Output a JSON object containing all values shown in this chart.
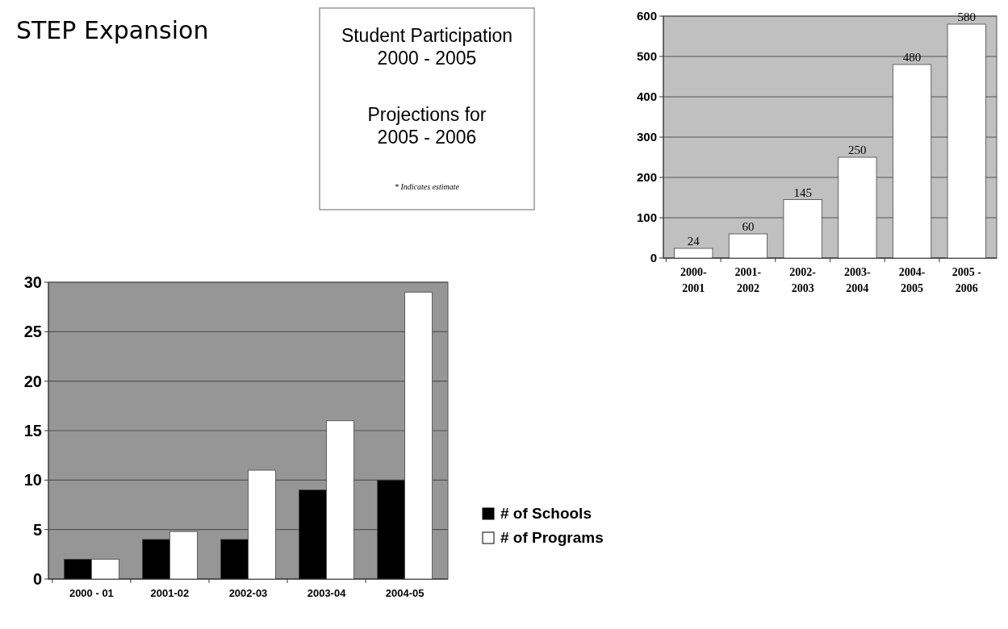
{
  "chart_data": [
    {
      "type": "other",
      "title": "STEP Expansion"
    },
    {
      "type": "other",
      "title": "Student Participation 2000 - 2005",
      "subtitle": "Projections for 2005 - 2006",
      "annotations": [
        "* Indicates estimate"
      ]
    },
    {
      "type": "bar",
      "categories": [
        "2000-2001",
        "2001-2002",
        "2002-2003",
        "2003-2004",
        "2004-2005",
        "2005 - 2006"
      ],
      "values": [
        24,
        60,
        145,
        250,
        480,
        580
      ],
      "color": "#ffffff",
      "data_labels": true,
      "ylim": [
        0,
        600
      ],
      "yticks": [
        0,
        100,
        200,
        300,
        400,
        500,
        600
      ],
      "grid": "y"
    },
    {
      "type": "bar",
      "categories": [
        "2000 - 01",
        "2001-02",
        "2002-03",
        "2003-04",
        "2004-05"
      ],
      "series": [
        {
          "name": "# of Schools",
          "color": "#000000",
          "values": [
            2,
            4,
            4,
            9,
            10
          ]
        },
        {
          "name": "# of Programs",
          "color": "#ffffff",
          "values": [
            2,
            4.8,
            11,
            16,
            29
          ]
        }
      ],
      "ylim": [
        0,
        30
      ],
      "yticks": [
        0,
        5,
        10,
        15,
        20,
        25,
        30
      ],
      "grid": "y",
      "legend": "bottom right"
    }
  ]
}
